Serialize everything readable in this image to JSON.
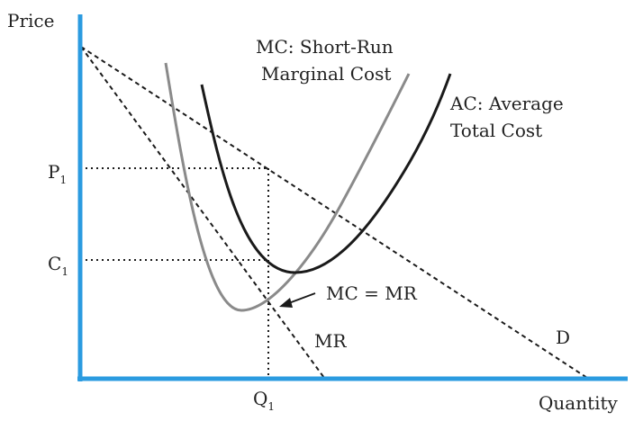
{
  "axes": {
    "y_label": "Price",
    "x_label": "Quantity",
    "color": "#2b9be0"
  },
  "labels": {
    "mc_line1": "MC: Short-Run",
    "mc_line2": "Marginal Cost",
    "ac_line1": "AC: Average",
    "ac_line2": "Total Cost",
    "mc_eq_mr": "MC = MR",
    "mr": "MR",
    "d": "D",
    "p1_main": "P",
    "p1_sub": "1",
    "c1_main": "C",
    "c1_sub": "1",
    "q1_main": "Q",
    "q1_sub": "1"
  },
  "colors": {
    "mc_curve": "#8a8a8a",
    "ac_curve": "#1a1a1a",
    "dashed_lines": "#1a1a1a"
  }
}
